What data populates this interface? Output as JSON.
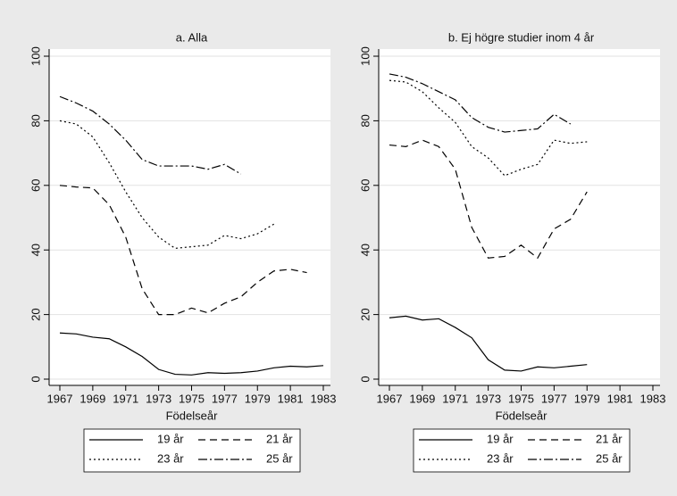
{
  "chart_data": [
    {
      "type": "line",
      "title": "a. Alla",
      "xlabel": "Födelseår",
      "x": [
        1967,
        1968,
        1969,
        1970,
        1971,
        1972,
        1973,
        1974,
        1975,
        1976,
        1977,
        1978,
        1979,
        1980,
        1981,
        1982,
        1983
      ],
      "xlim": [
        1967,
        1983
      ],
      "xticks": [
        1967,
        1969,
        1971,
        1973,
        1975,
        1977,
        1979,
        1981,
        1983
      ],
      "ylim": [
        0,
        100
      ],
      "yticks": [
        0,
        20,
        40,
        60,
        80,
        100
      ],
      "grid": true,
      "series": [
        {
          "name": "19 år",
          "color": "#000000",
          "style": "solid",
          "values": [
            14.3,
            14,
            13,
            12.5,
            10,
            7,
            3,
            1.5,
            1.3,
            2,
            1.8,
            2,
            2.5,
            3.5,
            4,
            3.8,
            4.2
          ]
        },
        {
          "name": "21 år",
          "color": "#000000",
          "style": "dash",
          "values": [
            60,
            59.5,
            59.2,
            54,
            44,
            28,
            20,
            20,
            22,
            20.5,
            23.5,
            25.5,
            30,
            33.5,
            34,
            33,
            null
          ]
        },
        {
          "name": "23 år",
          "color": "#000000",
          "style": "dot",
          "values": [
            80,
            79,
            75,
            67,
            58,
            50,
            44,
            40.5,
            41,
            41.5,
            44.5,
            43.5,
            45,
            48,
            null,
            null,
            null
          ]
        },
        {
          "name": "25 år",
          "color": "#000000",
          "style": "dashdot",
          "values": [
            87.5,
            85.5,
            83,
            79,
            74,
            68,
            66,
            66,
            66,
            65,
            66.5,
            63.5,
            null,
            null,
            null,
            null,
            null
          ]
        }
      ]
    },
    {
      "type": "line",
      "title": "b. Ej högre studier inom 4 år",
      "xlabel": "Födelseår",
      "x": [
        1967,
        1968,
        1969,
        1970,
        1971,
        1972,
        1973,
        1974,
        1975,
        1976,
        1977,
        1978,
        1979,
        1980,
        1981,
        1982,
        1983
      ],
      "xlim": [
        1967,
        1983
      ],
      "xticks": [
        1967,
        1969,
        1971,
        1973,
        1975,
        1977,
        1979,
        1981,
        1983
      ],
      "ylim": [
        0,
        100
      ],
      "yticks": [
        0,
        20,
        40,
        60,
        80,
        100
      ],
      "grid": true,
      "series": [
        {
          "name": "19 år",
          "color": "#000000",
          "style": "solid",
          "values": [
            19,
            19.5,
            18.3,
            18.7,
            16,
            12.8,
            6,
            2.8,
            2.5,
            3.8,
            3.5,
            4,
            4.5,
            null,
            null,
            null,
            null
          ]
        },
        {
          "name": "21 år",
          "color": "#000000",
          "style": "dash",
          "values": [
            72.5,
            72,
            74,
            72,
            65,
            47,
            37.5,
            38,
            41.5,
            37.5,
            46.5,
            49.5,
            58,
            null,
            null,
            null,
            null
          ]
        },
        {
          "name": "23 år",
          "color": "#000000",
          "style": "dot",
          "values": [
            92.5,
            92,
            89,
            84,
            79.5,
            72,
            68.5,
            63,
            65,
            66.5,
            74,
            73,
            73.5,
            null,
            null,
            null,
            null
          ]
        },
        {
          "name": "25 år",
          "color": "#000000",
          "style": "dashdot",
          "values": [
            94.5,
            93.5,
            91.5,
            89,
            86.5,
            81,
            78,
            76.5,
            77,
            77.5,
            82,
            79,
            null,
            null,
            null,
            null,
            null
          ]
        }
      ]
    }
  ]
}
